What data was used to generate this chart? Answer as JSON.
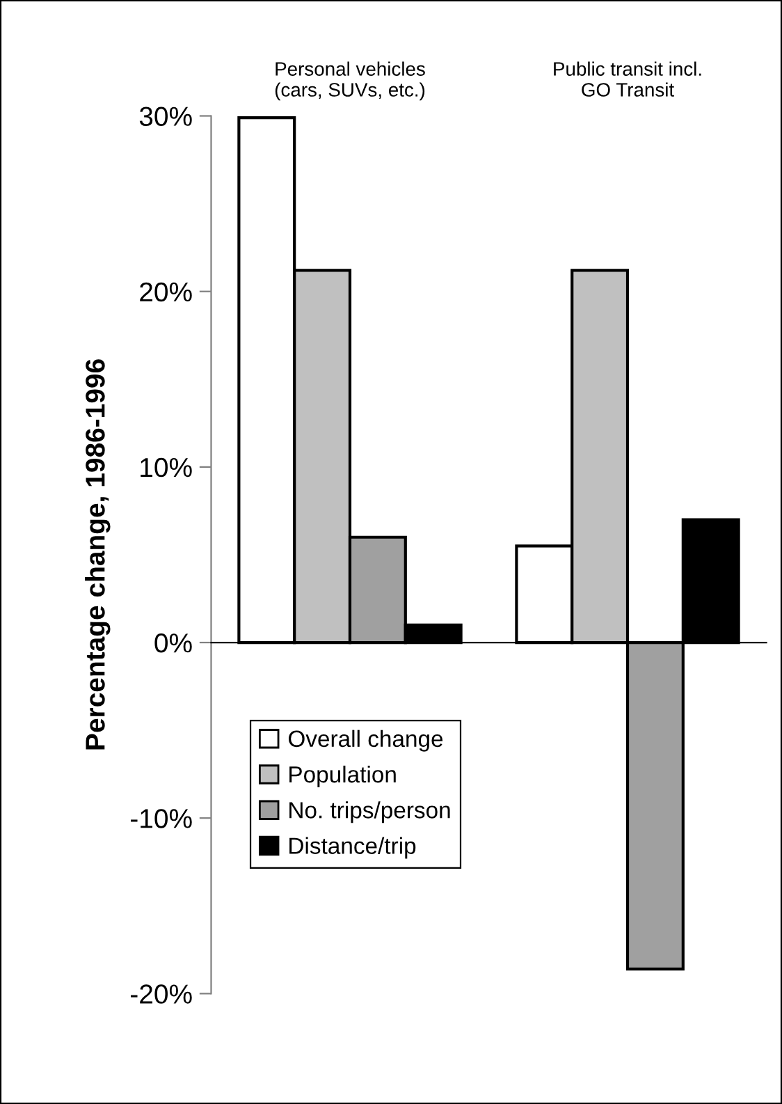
{
  "chart_data": {
    "type": "bar",
    "ylabel": "Percentage change, 1986-1996",
    "categories": [
      "Personal vehicles\n(cars, SUVs, etc.)",
      "Public transit incl.\nGO Transit"
    ],
    "series": [
      {
        "name": "Overall change",
        "color": "#ffffff",
        "values": [
          29.9,
          5.5
        ]
      },
      {
        "name": "Population",
        "color": "#c0c0c0",
        "values": [
          21.2,
          21.2
        ]
      },
      {
        "name": "No. trips/person",
        "color": "#a0a0a0",
        "values": [
          6.0,
          -18.6
        ]
      },
      {
        "name": "Distance/trip",
        "color": "#000000",
        "values": [
          1.0,
          7.0
        ]
      }
    ],
    "ylim": [
      -20,
      30
    ],
    "yticks": [
      {
        "value": -20,
        "label": "-20%"
      },
      {
        "value": -10,
        "label": "-10%"
      },
      {
        "value": 0,
        "label": "0%"
      },
      {
        "value": 10,
        "label": "10%"
      },
      {
        "value": 20,
        "label": "20%"
      },
      {
        "value": 30,
        "label": "30%"
      }
    ],
    "legend": "bottom left"
  }
}
